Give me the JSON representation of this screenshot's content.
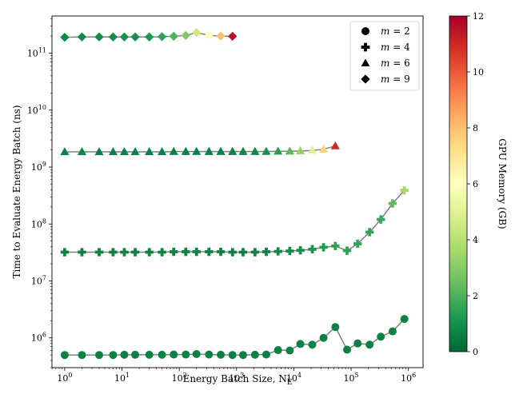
{
  "chart_data": {
    "type": "scatter",
    "title": "",
    "xlabel": "Energy Batch Size, N",
    "xlabel_sub": "E",
    "ylabel": "Time to Evaluate Energy Batch (ns)",
    "xscale": "log",
    "yscale": "log",
    "xlim": [
      0.6,
      1800000
    ],
    "ylim": [
      300000,
      450000000000
    ],
    "x_ticks": [
      {
        "value": 1,
        "base": "10",
        "exp": "0"
      },
      {
        "value": 10,
        "base": "10",
        "exp": "1"
      },
      {
        "value": 100,
        "base": "10",
        "exp": "2"
      },
      {
        "value": 1000,
        "base": "10",
        "exp": "3"
      },
      {
        "value": 10000,
        "base": "10",
        "exp": "4"
      },
      {
        "value": 100000,
        "base": "10",
        "exp": "5"
      },
      {
        "value": 1000000,
        "base": "10",
        "exp": "6"
      }
    ],
    "y_ticks": [
      {
        "value": 1000000,
        "base": "10",
        "exp": "6"
      },
      {
        "value": 10000000,
        "base": "10",
        "exp": "7"
      },
      {
        "value": 100000000,
        "base": "10",
        "exp": "8"
      },
      {
        "value": 1000000000,
        "base": "10",
        "exp": "9"
      },
      {
        "value": 10000000000,
        "base": "10",
        "exp": "10"
      },
      {
        "value": 100000000000,
        "base": "10",
        "exp": "11"
      }
    ],
    "colorbar": {
      "label": "GPU Memory (GB)",
      "range": [
        0,
        12
      ],
      "ticks": [
        "0",
        "2",
        "4",
        "6",
        "8",
        "10",
        "12"
      ],
      "colormap": "RdYlGn_r"
    },
    "legend": {
      "position": "top-right",
      "entries": [
        {
          "m_label": "m",
          "value_label": " = 2",
          "marker": "circle"
        },
        {
          "m_label": "m",
          "value_label": " = 4",
          "marker": "plus"
        },
        {
          "m_label": "m",
          "value_label": " = 6",
          "marker": "triangle"
        },
        {
          "m_label": "m",
          "value_label": " = 9",
          "marker": "diamond"
        }
      ]
    },
    "series": [
      {
        "name": "m = 2",
        "marker": "circle",
        "points": [
          {
            "x": 1,
            "y": 500000,
            "mem": 0.6
          },
          {
            "x": 2,
            "y": 500000,
            "mem": 0.6
          },
          {
            "x": 4,
            "y": 500000,
            "mem": 0.6
          },
          {
            "x": 7,
            "y": 500000,
            "mem": 0.6
          },
          {
            "x": 11,
            "y": 505000,
            "mem": 0.6
          },
          {
            "x": 17,
            "y": 505000,
            "mem": 0.6
          },
          {
            "x": 30,
            "y": 505000,
            "mem": 0.6
          },
          {
            "x": 50,
            "y": 505000,
            "mem": 0.6
          },
          {
            "x": 80,
            "y": 510000,
            "mem": 0.6
          },
          {
            "x": 130,
            "y": 510000,
            "mem": 0.6
          },
          {
            "x": 200,
            "y": 520000,
            "mem": 0.6
          },
          {
            "x": 330,
            "y": 510000,
            "mem": 0.6
          },
          {
            "x": 530,
            "y": 505000,
            "mem": 0.6
          },
          {
            "x": 850,
            "y": 500000,
            "mem": 0.6
          },
          {
            "x": 1300,
            "y": 500000,
            "mem": 0.6
          },
          {
            "x": 2100,
            "y": 505000,
            "mem": 0.6
          },
          {
            "x": 3300,
            "y": 510000,
            "mem": 0.6
          },
          {
            "x": 5300,
            "y": 610000,
            "mem": 0.6
          },
          {
            "x": 8500,
            "y": 600000,
            "mem": 0.6
          },
          {
            "x": 13000,
            "y": 780000,
            "mem": 0.6
          },
          {
            "x": 21000,
            "y": 760000,
            "mem": 0.6
          },
          {
            "x": 33000,
            "y": 1000000,
            "mem": 0.6
          },
          {
            "x": 53000,
            "y": 1550000,
            "mem": 0.6
          },
          {
            "x": 85000,
            "y": 620000,
            "mem": 0.6
          },
          {
            "x": 130000,
            "y": 800000,
            "mem": 0.6
          },
          {
            "x": 210000,
            "y": 760000,
            "mem": 0.6
          },
          {
            "x": 330000,
            "y": 1050000,
            "mem": 0.6
          },
          {
            "x": 530000,
            "y": 1300000,
            "mem": 0.6
          },
          {
            "x": 850000,
            "y": 2150000,
            "mem": 0.6
          }
        ]
      },
      {
        "name": "m = 4",
        "marker": "plus",
        "points": [
          {
            "x": 1,
            "y": 32000000,
            "mem": 0.6
          },
          {
            "x": 2,
            "y": 32000000,
            "mem": 0.6
          },
          {
            "x": 4,
            "y": 32000000,
            "mem": 0.6
          },
          {
            "x": 7,
            "y": 32000000,
            "mem": 0.6
          },
          {
            "x": 11,
            "y": 32000000,
            "mem": 0.6
          },
          {
            "x": 17,
            "y": 32000000,
            "mem": 0.6
          },
          {
            "x": 30,
            "y": 32000000,
            "mem": 0.6
          },
          {
            "x": 50,
            "y": 32000000,
            "mem": 0.6
          },
          {
            "x": 80,
            "y": 32500000,
            "mem": 0.6
          },
          {
            "x": 130,
            "y": 32500000,
            "mem": 0.6
          },
          {
            "x": 200,
            "y": 32500000,
            "mem": 0.6
          },
          {
            "x": 330,
            "y": 32500000,
            "mem": 0.6
          },
          {
            "x": 530,
            "y": 32500000,
            "mem": 0.6
          },
          {
            "x": 850,
            "y": 32000000,
            "mem": 0.6
          },
          {
            "x": 1300,
            "y": 32000000,
            "mem": 0.6
          },
          {
            "x": 2100,
            "y": 32000000,
            "mem": 0.6
          },
          {
            "x": 3300,
            "y": 32500000,
            "mem": 0.6
          },
          {
            "x": 5300,
            "y": 33000000,
            "mem": 0.8
          },
          {
            "x": 8500,
            "y": 33500000,
            "mem": 0.9
          },
          {
            "x": 13000,
            "y": 34500000,
            "mem": 1.0
          },
          {
            "x": 21000,
            "y": 36000000,
            "mem": 1.1
          },
          {
            "x": 33000,
            "y": 39000000,
            "mem": 1.3
          },
          {
            "x": 53000,
            "y": 41000000,
            "mem": 1.5
          },
          {
            "x": 85000,
            "y": 34000000,
            "mem": 1.5
          },
          {
            "x": 130000,
            "y": 45000000,
            "mem": 1.6
          },
          {
            "x": 210000,
            "y": 72000000,
            "mem": 1.6
          },
          {
            "x": 330000,
            "y": 120000000,
            "mem": 1.7
          },
          {
            "x": 530000,
            "y": 230000000,
            "mem": 2.3
          },
          {
            "x": 850000,
            "y": 390000000,
            "mem": 3.6
          }
        ]
      },
      {
        "name": "m = 6",
        "marker": "triangle",
        "points": [
          {
            "x": 1,
            "y": 1850000000,
            "mem": 0.6
          },
          {
            "x": 2,
            "y": 1850000000,
            "mem": 0.6
          },
          {
            "x": 4,
            "y": 1850000000,
            "mem": 0.6
          },
          {
            "x": 7,
            "y": 1850000000,
            "mem": 0.6
          },
          {
            "x": 11,
            "y": 1850000000,
            "mem": 0.6
          },
          {
            "x": 17,
            "y": 1850000000,
            "mem": 0.6
          },
          {
            "x": 30,
            "y": 1850000000,
            "mem": 0.6
          },
          {
            "x": 50,
            "y": 1850000000,
            "mem": 0.6
          },
          {
            "x": 80,
            "y": 1870000000,
            "mem": 0.6
          },
          {
            "x": 130,
            "y": 1870000000,
            "mem": 0.6
          },
          {
            "x": 200,
            "y": 1870000000,
            "mem": 0.6
          },
          {
            "x": 330,
            "y": 1870000000,
            "mem": 0.6
          },
          {
            "x": 530,
            "y": 1870000000,
            "mem": 0.6
          },
          {
            "x": 850,
            "y": 1870000000,
            "mem": 0.6
          },
          {
            "x": 1300,
            "y": 1870000000,
            "mem": 0.7
          },
          {
            "x": 2100,
            "y": 1870000000,
            "mem": 0.8
          },
          {
            "x": 3300,
            "y": 1880000000,
            "mem": 1.0
          },
          {
            "x": 5300,
            "y": 1890000000,
            "mem": 1.4
          },
          {
            "x": 8500,
            "y": 1900000000,
            "mem": 2.2
          },
          {
            "x": 13000,
            "y": 1920000000,
            "mem": 3.3
          },
          {
            "x": 21000,
            "y": 1960000000,
            "mem": 5.0
          },
          {
            "x": 33000,
            "y": 2050000000,
            "mem": 7.5
          },
          {
            "x": 53000,
            "y": 2350000000,
            "mem": 11.0
          }
        ]
      },
      {
        "name": "m = 9",
        "marker": "diamond",
        "points": [
          {
            "x": 1,
            "y": 190000000000,
            "mem": 0.8
          },
          {
            "x": 2,
            "y": 193000000000,
            "mem": 0.8
          },
          {
            "x": 4,
            "y": 193000000000,
            "mem": 0.9
          },
          {
            "x": 7,
            "y": 193000000000,
            "mem": 0.9
          },
          {
            "x": 11,
            "y": 193000000000,
            "mem": 1.0
          },
          {
            "x": 17,
            "y": 193000000000,
            "mem": 1.0
          },
          {
            "x": 30,
            "y": 193000000000,
            "mem": 1.2
          },
          {
            "x": 50,
            "y": 195000000000,
            "mem": 1.5
          },
          {
            "x": 80,
            "y": 198000000000,
            "mem": 2.0
          },
          {
            "x": 130,
            "y": 205000000000,
            "mem": 2.9
          },
          {
            "x": 200,
            "y": 230000000000,
            "mem": 4.5
          },
          {
            "x": 330,
            "y": 205000000000,
            "mem": 6.0
          },
          {
            "x": 530,
            "y": 200000000000,
            "mem": 8.0
          },
          {
            "x": 850,
            "y": 198000000000,
            "mem": 11.5
          }
        ]
      }
    ]
  }
}
